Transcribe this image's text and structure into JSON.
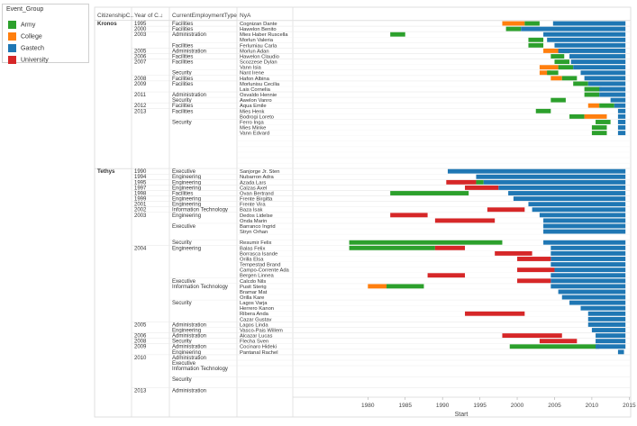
{
  "legend": {
    "title": "Event_Group",
    "items": [
      {
        "label": "Army",
        "color": "#2ca02c"
      },
      {
        "label": "College",
        "color": "#ff7f0e"
      },
      {
        "label": "Gastech",
        "color": "#1f77b4"
      },
      {
        "label": "University",
        "color": "#d62728"
      }
    ]
  },
  "headers": {
    "citizenship": "CitizenshipC..",
    "year": "Year of C..",
    "employment": "CurrentEmploymentType",
    "name": "NyA"
  },
  "chart_data": {
    "type": "gantt",
    "xlabel": "Start",
    "xlim": [
      1972,
      2015.2
    ],
    "xticks": [
      1980,
      1985,
      1990,
      1995,
      2000,
      2005,
      2010,
      2015
    ],
    "colors": {
      "Army": "#2ca02c",
      "College": "#ff7f0e",
      "Gastech": "#1f77b4",
      "University": "#d62728"
    },
    "groups": [
      {
        "label": "Kronos",
        "start": 0
      },
      {
        "label": "Tethys",
        "start": 27
      }
    ],
    "years": [
      {
        "label": "1995",
        "start": 0
      },
      {
        "label": "2000",
        "start": 1
      },
      {
        "label": "2003",
        "start": 2
      },
      {
        "label": "2005",
        "start": 5
      },
      {
        "label": "2006",
        "start": 6
      },
      {
        "label": "2007",
        "start": 7
      },
      {
        "label": "2008",
        "start": 10
      },
      {
        "label": "2009",
        "start": 11
      },
      {
        "label": "2011",
        "start": 13
      },
      {
        "label": "2012",
        "start": 15
      },
      {
        "label": "2013",
        "start": 16
      },
      {
        "label": "1990",
        "start": 27
      },
      {
        "label": "1994",
        "start": 28
      },
      {
        "label": "1995",
        "start": 29
      },
      {
        "label": "1997",
        "start": 30
      },
      {
        "label": "1998",
        "start": 31
      },
      {
        "label": "1999",
        "start": 32
      },
      {
        "label": "2001",
        "start": 33
      },
      {
        "label": "2002",
        "start": 34
      },
      {
        "label": "2003",
        "start": 35
      },
      {
        "label": "2004",
        "start": 41
      },
      {
        "label": "2005",
        "start": 55
      },
      {
        "label": "2006",
        "start": 57
      },
      {
        "label": "2008",
        "start": 58
      },
      {
        "label": "2009",
        "start": 59
      },
      {
        "label": "2010",
        "start": 61
      },
      {
        "label": "2013",
        "start": 67
      }
    ],
    "employment": [
      {
        "label": "Facilities",
        "start": 0
      },
      {
        "label": "Facilities",
        "start": 1
      },
      {
        "label": "Administration",
        "start": 2
      },
      {
        "label": "Facilities",
        "start": 4
      },
      {
        "label": "Administration",
        "start": 5
      },
      {
        "label": "Facilities",
        "start": 6
      },
      {
        "label": "Facilities",
        "start": 7
      },
      {
        "label": "Security",
        "start": 9
      },
      {
        "label": "Facilities",
        "start": 10
      },
      {
        "label": "Facilities",
        "start": 11
      },
      {
        "label": "Administration",
        "start": 13
      },
      {
        "label": "Security",
        "start": 14
      },
      {
        "label": "Facilities",
        "start": 15
      },
      {
        "label": "Facilities",
        "start": 16
      },
      {
        "label": "Security",
        "start": 18
      },
      {
        "label": "Executive",
        "start": 27
      },
      {
        "label": "Engineering",
        "start": 28
      },
      {
        "label": "Engineering",
        "start": 29
      },
      {
        "label": "Engineering",
        "start": 30
      },
      {
        "label": "Facilities",
        "start": 31
      },
      {
        "label": "Engineering",
        "start": 32
      },
      {
        "label": "Engineering",
        "start": 33
      },
      {
        "label": "Information Technology",
        "start": 34
      },
      {
        "label": "Engineering",
        "start": 35
      },
      {
        "label": "Executive",
        "start": 37
      },
      {
        "label": "Security",
        "start": 40
      },
      {
        "label": "Engineering",
        "start": 41
      },
      {
        "label": "Executive",
        "start": 47
      },
      {
        "label": "Information Technology",
        "start": 48
      },
      {
        "label": "Security",
        "start": 51
      },
      {
        "label": "Administration",
        "start": 55
      },
      {
        "label": "Engineering",
        "start": 56
      },
      {
        "label": "Administration",
        "start": 57
      },
      {
        "label": "Security",
        "start": 58
      },
      {
        "label": "Administration",
        "start": 59
      },
      {
        "label": "Engineering",
        "start": 60
      },
      {
        "label": "Administration",
        "start": 61
      },
      {
        "label": "Executive",
        "start": 62
      },
      {
        "label": "Information Technology",
        "start": 63
      },
      {
        "label": "Security",
        "start": 65
      },
      {
        "label": "Administration",
        "start": 67
      }
    ],
    "rows": [
      {
        "name": "Cognizan Dante",
        "bars": [
          [
            "College",
            1998,
            2001
          ],
          [
            "Army",
            2001,
            2003
          ],
          [
            "Gastech",
            2004.8,
            2014.5
          ]
        ]
      },
      {
        "name": "Hawelon Benito",
        "bars": [
          [
            "Army",
            1998.5,
            2000.5
          ],
          [
            "Gastech",
            2000.5,
            2014.5
          ]
        ]
      },
      {
        "name": "Mies Haber Ruscella",
        "bars": [
          [
            "Army",
            1983,
            1985
          ],
          [
            "Gastech",
            2003.5,
            2014.5
          ]
        ]
      },
      {
        "name": "Morlun Valeria",
        "bars": [
          [
            "Army",
            2001.5,
            2003.5
          ],
          [
            "Gastech",
            2004,
            2014.5
          ]
        ]
      },
      {
        "name": "Ferlumiau Carla",
        "bars": [
          [
            "Army",
            2001.5,
            2003.5
          ],
          [
            "Gastech",
            2005,
            2014.5
          ]
        ]
      },
      {
        "name": "Morlun Adan",
        "bars": [
          [
            "College",
            2003.5,
            2006
          ],
          [
            "Army",
            2006,
            2007
          ],
          [
            "Gastech",
            2005.5,
            2014.5
          ]
        ]
      },
      {
        "name": "Hawelon Claudio",
        "bars": [
          [
            "Army",
            2004.5,
            2006.3
          ],
          [
            "Gastech",
            2007,
            2014.5
          ]
        ]
      },
      {
        "name": "Scozzese Dylan",
        "bars": [
          [
            "Army",
            2005,
            2007
          ],
          [
            "Gastech",
            2007.2,
            2014.5
          ]
        ]
      },
      {
        "name": "Vann Isia",
        "bars": [
          [
            "College",
            2003,
            2005.5
          ],
          [
            "Army",
            2005.5,
            2007.5
          ],
          [
            "Gastech",
            2007.5,
            2014.5
          ]
        ]
      },
      {
        "name": "Nant Irene",
        "bars": [
          [
            "College",
            2003,
            2004.5
          ],
          [
            "Army",
            2004,
            2005.5
          ],
          [
            "Gastech",
            2008.5,
            2014.5
          ]
        ]
      },
      {
        "name": "Hafon Albina",
        "bars": [
          [
            "College",
            2004.5,
            2006
          ],
          [
            "Army",
            2006,
            2008
          ],
          [
            "Gastech",
            2009,
            2014.5
          ]
        ]
      },
      {
        "name": "Morlunisu Cecilia",
        "bars": [
          [
            "Army",
            2007.5,
            2009.5
          ],
          [
            "Gastech",
            2009.5,
            2014.5
          ]
        ]
      },
      {
        "name": "Lais Cornelia",
        "bars": [
          [
            "Army",
            2009,
            2011.3
          ],
          [
            "Gastech",
            2011,
            2014.5
          ]
        ]
      },
      {
        "name": "Osvaldo Hennie",
        "bars": [
          [
            "Army",
            2009,
            2011
          ],
          [
            "Gastech",
            2011,
            2014.5
          ]
        ]
      },
      {
        "name": "Awelon Vanro",
        "bars": [
          [
            "Army",
            2004.5,
            2006.5
          ],
          [
            "Gastech",
            2012.5,
            2014.5
          ]
        ]
      },
      {
        "name": "Aqua Emile",
        "bars": [
          [
            "College",
            2009.5,
            2011
          ],
          [
            "Army",
            2011,
            2013
          ],
          [
            "Gastech",
            2013,
            2014.5
          ]
        ]
      },
      {
        "name": "Mies Henk",
        "bars": [
          [
            "Army",
            2002.5,
            2004.5
          ],
          [
            "Gastech",
            2013.5,
            2014.5
          ]
        ]
      },
      {
        "name": "Bodrogi Loreto",
        "bars": [
          [
            "Army",
            2007,
            2009
          ],
          [
            "College",
            2009,
            2012
          ],
          [
            "Gastech",
            2013.5,
            2014.5
          ]
        ]
      },
      {
        "name": "Ferro Inga",
        "bars": [
          [
            "Army",
            2010.5,
            2012.5
          ],
          [
            "Gastech",
            2013.5,
            2014.5
          ]
        ]
      },
      {
        "name": "Mies Minke",
        "bars": [
          [
            "Army",
            2010,
            2012
          ],
          [
            "Gastech",
            2013.5,
            2014.5
          ]
        ]
      },
      {
        "name": "Vann Edvard",
        "bars": [
          [
            "Army",
            2010,
            2012
          ],
          [
            "Gastech",
            2013.5,
            2014.5
          ]
        ]
      },
      {
        "name": "",
        "bars": []
      },
      {
        "name": "",
        "bars": []
      },
      {
        "name": "",
        "bars": []
      },
      {
        "name": "",
        "bars": []
      },
      {
        "name": "",
        "bars": []
      },
      {
        "name": "",
        "bars": []
      },
      {
        "name": "Sanjorge Jr. Sten",
        "bars": [
          [
            "Gastech",
            1990.7,
            2014.5
          ]
        ]
      },
      {
        "name": "Nubarron Adra",
        "bars": [
          [
            "Gastech",
            1994.5,
            2014.5
          ]
        ]
      },
      {
        "name": "Azada Lars",
        "bars": [
          [
            "University",
            1990.5,
            1994.5
          ],
          [
            "Army",
            1994.5,
            1995.5
          ],
          [
            "Gastech",
            1995.5,
            2014.5
          ]
        ]
      },
      {
        "name": "Calzas Axel",
        "bars": [
          [
            "University",
            1993,
            1997.5
          ],
          [
            "Gastech",
            1997.5,
            2014.5
          ]
        ]
      },
      {
        "name": "Ovan Bertrand",
        "bars": [
          [
            "Army",
            1983,
            1993.5
          ],
          [
            "Gastech",
            1998.8,
            2014.5
          ]
        ]
      },
      {
        "name": "Frente Birgitta",
        "bars": [
          [
            "Gastech",
            1999.5,
            2014.5
          ]
        ]
      },
      {
        "name": "Frente Vira",
        "bars": [
          [
            "Gastech",
            2001.5,
            2014.5
          ]
        ]
      },
      {
        "name": "Baza Isak",
        "bars": [
          [
            "University",
            1996,
            2001
          ],
          [
            "Gastech",
            2002,
            2014.5
          ]
        ]
      },
      {
        "name": "Dedos Lidelse",
        "bars": [
          [
            "University",
            1983,
            1988
          ],
          [
            "Gastech",
            2003,
            2014.5
          ]
        ]
      },
      {
        "name": "Onda Marin",
        "bars": [
          [
            "University",
            1989,
            1997
          ],
          [
            "Gastech",
            2003.5,
            2014.5
          ]
        ]
      },
      {
        "name": "Barranco Ingrid",
        "bars": [
          [
            "Gastech",
            2003.5,
            2014.5
          ]
        ]
      },
      {
        "name": "Stryn Orhan",
        "bars": [
          [
            "Gastech",
            2003.5,
            2014.5
          ]
        ]
      },
      {
        "name": "",
        "bars": []
      },
      {
        "name": "Resumir Felix",
        "bars": [
          [
            "Army",
            1977.5,
            1998
          ],
          [
            "Gastech",
            2003.5,
            2014.5
          ]
        ]
      },
      {
        "name": "Balas Felix",
        "bars": [
          [
            "Army",
            1977.5,
            1989
          ],
          [
            "University",
            1989,
            1993
          ],
          [
            "Gastech",
            2004.5,
            2014.5
          ]
        ]
      },
      {
        "name": "Borrasca Isande",
        "bars": [
          [
            "University",
            1997,
            2002
          ],
          [
            "Gastech",
            2004.5,
            2014.5
          ]
        ]
      },
      {
        "name": "Orilla Elsa",
        "bars": [
          [
            "University",
            2000,
            2004.5
          ],
          [
            "Gastech",
            2004.5,
            2014.5
          ]
        ]
      },
      {
        "name": "Tempestad Brand",
        "bars": [
          [
            "Gastech",
            2004.5,
            2014.5
          ]
        ]
      },
      {
        "name": "Campo-Corrente Ada",
        "bars": [
          [
            "University",
            2000,
            2005
          ],
          [
            "Gastech",
            2005,
            2014.5
          ]
        ]
      },
      {
        "name": "Bergen Linnea",
        "bars": [
          [
            "University",
            1988,
            1993
          ],
          [
            "Gastech",
            2004.5,
            2014.5
          ]
        ]
      },
      {
        "name": "Calcdo Nils",
        "bars": [
          [
            "University",
            2000,
            2004.5
          ],
          [
            "Gastech",
            2004.5,
            2014.5
          ]
        ]
      },
      {
        "name": "Pusit Sterig",
        "bars": [
          [
            "College",
            1980,
            1982.5
          ],
          [
            "Army",
            1982.5,
            1987.5
          ],
          [
            "Gastech",
            2004.5,
            2014.5
          ]
        ]
      },
      {
        "name": "Bramar Mat",
        "bars": [
          [
            "Gastech",
            2005.5,
            2014.5
          ]
        ]
      },
      {
        "name": "Orilla Kare",
        "bars": [
          [
            "Gastech",
            2006,
            2014.5
          ]
        ]
      },
      {
        "name": "Lagos Varja",
        "bars": [
          [
            "Gastech",
            2007,
            2014.5
          ]
        ]
      },
      {
        "name": "Herrero Kanon",
        "bars": [
          [
            "Gastech",
            2008.5,
            2014.5
          ]
        ]
      },
      {
        "name": "Ribera Anda",
        "bars": [
          [
            "University",
            1993,
            2001
          ],
          [
            "Gastech",
            2009.5,
            2014.5
          ]
        ]
      },
      {
        "name": "Cazar Gustav",
        "bars": [
          [
            "Gastech",
            2009.5,
            2014.5
          ]
        ]
      },
      {
        "name": "Lagos Linda",
        "bars": [
          [
            "Gastech",
            2009.5,
            2014.5
          ]
        ]
      },
      {
        "name": "Vasco-Pais Willem",
        "bars": [
          [
            "Gastech",
            2010,
            2014.5
          ]
        ]
      },
      {
        "name": "Alcazar Lucas",
        "bars": [
          [
            "University",
            1998,
            2006
          ],
          [
            "Gastech",
            2010.5,
            2014.5
          ]
        ]
      },
      {
        "name": "Flecha Sven",
        "bars": [
          [
            "University",
            2003,
            2008
          ],
          [
            "Gastech",
            2010.5,
            2014.5
          ]
        ]
      },
      {
        "name": "Cocinaro Hideki",
        "bars": [
          [
            "Army",
            1999,
            2011
          ],
          [
            "Gastech",
            2010.5,
            2014.5
          ]
        ]
      },
      {
        "name": "Pantanal Rachel",
        "bars": [
          [
            "Gastech",
            2013.5,
            2014.3
          ]
        ]
      }
    ]
  }
}
